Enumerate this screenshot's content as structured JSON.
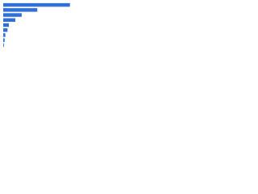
{
  "chart_data": {
    "type": "hbar",
    "categories": [
      null,
      null,
      null,
      null,
      null,
      null,
      null,
      null,
      null
    ],
    "values": [
      94,
      48,
      26,
      17,
      8,
      6,
      3,
      2,
      1
    ],
    "color": "#2f6fd6",
    "xlim": [
      0,
      100
    ]
  }
}
